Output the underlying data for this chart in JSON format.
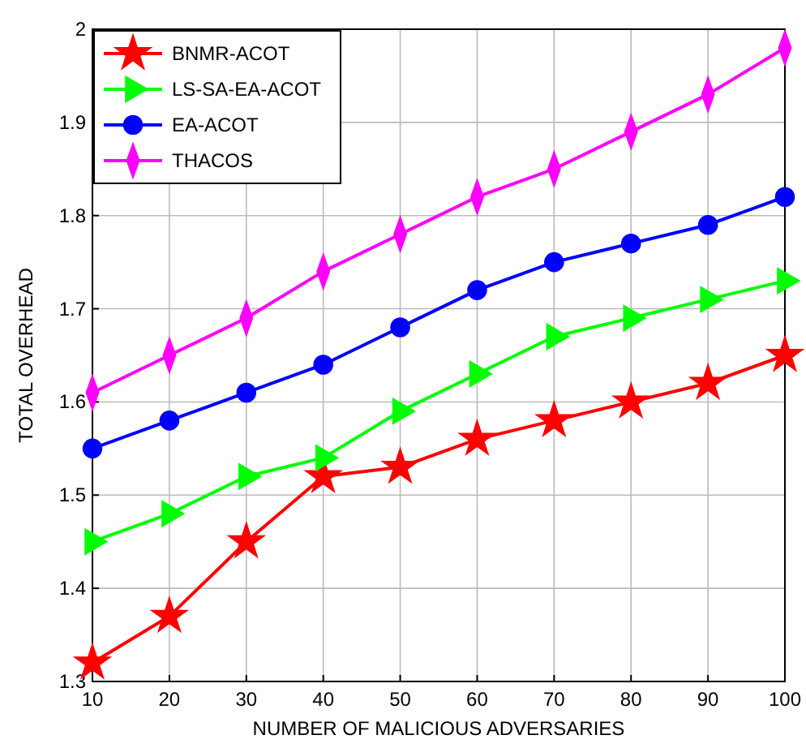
{
  "chart_data": {
    "type": "line",
    "xlabel": "NUMBER OF MALICIOUS ADVERSARIES",
    "ylabel": "TOTAL OVERHEAD",
    "x": [
      10,
      20,
      30,
      40,
      50,
      60,
      70,
      80,
      90,
      100
    ],
    "series": [
      {
        "name": "BNMR-ACOT",
        "color": "#ff0000",
        "marker": "star",
        "values": [
          1.32,
          1.37,
          1.45,
          1.52,
          1.53,
          1.56,
          1.58,
          1.6,
          1.62,
          1.65
        ]
      },
      {
        "name": "LS-SA-EA-ACOT",
        "color": "#00ff00",
        "marker": "triangle",
        "values": [
          1.45,
          1.48,
          1.52,
          1.54,
          1.59,
          1.63,
          1.67,
          1.69,
          1.71,
          1.73
        ]
      },
      {
        "name": "EA-ACOT",
        "color": "#0000ff",
        "marker": "circle",
        "values": [
          1.55,
          1.58,
          1.61,
          1.64,
          1.68,
          1.72,
          1.75,
          1.77,
          1.79,
          1.82
        ]
      },
      {
        "name": "THACOS",
        "color": "#ff00ff",
        "marker": "diamond",
        "values": [
          1.61,
          1.65,
          1.69,
          1.74,
          1.78,
          1.82,
          1.85,
          1.89,
          1.93,
          1.98
        ]
      }
    ],
    "xlim": [
      10,
      100
    ],
    "xticks": [
      10,
      20,
      30,
      40,
      50,
      60,
      70,
      80,
      90,
      100
    ],
    "ylim": [
      1.3,
      2
    ],
    "yticks": [
      1.3,
      1.4,
      1.5,
      1.6,
      1.7,
      1.8,
      1.9,
      2
    ],
    "grid": true,
    "legend": "top left",
    "line_style": "solid"
  }
}
